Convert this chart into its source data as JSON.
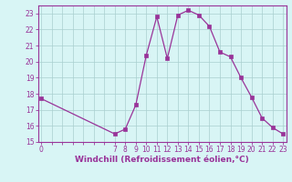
{
  "xlabel": "Windchill (Refroidissement éolien,°C)",
  "x_values": [
    0,
    7,
    8,
    9,
    10,
    11,
    12,
    13,
    14,
    15,
    16,
    17,
    18,
    19,
    20,
    21,
    22,
    23
  ],
  "y_values": [
    17.7,
    15.5,
    15.8,
    17.3,
    20.4,
    22.8,
    20.2,
    22.9,
    23.2,
    22.9,
    22.2,
    20.6,
    20.3,
    19.0,
    17.8,
    16.5,
    15.9,
    15.5
  ],
  "line_color": "#993399",
  "marker_color": "#993399",
  "bg_color": "#d8f5f5",
  "grid_color": "#aacfcf",
  "ylim_min": 15,
  "ylim_max": 23.5,
  "yticks": [
    15,
    16,
    17,
    18,
    19,
    20,
    21,
    22,
    23
  ],
  "xlim_min": 0,
  "xlim_max": 23,
  "tick_fontsize": 5.5,
  "label_fontsize": 6.5
}
